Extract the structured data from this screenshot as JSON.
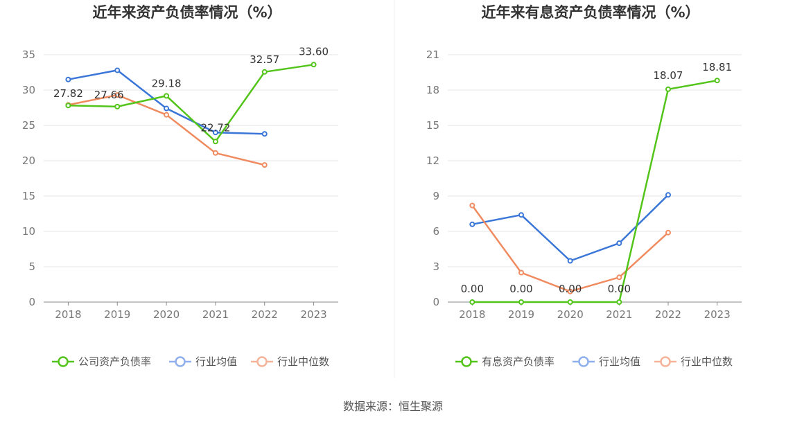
{
  "source": "数据来源：恒生聚源",
  "chart_data": [
    {
      "type": "line",
      "title": "近年来资产负债率情况（%）",
      "x": [
        "2018",
        "2019",
        "2020",
        "2021",
        "2022",
        "2023"
      ],
      "ylim": [
        0,
        35
      ],
      "yticks": [
        0,
        5,
        10,
        15,
        20,
        25,
        30,
        35
      ],
      "grid": true,
      "legend_position": "bottom",
      "series": [
        {
          "name": "公司资产负债率",
          "color": "#52c41a",
          "values": [
            27.82,
            27.66,
            29.18,
            22.72,
            32.57,
            33.6
          ],
          "labels": [
            "27.82",
            "27.66",
            "29.18",
            "22.72",
            "32.57",
            "33.60"
          ]
        },
        {
          "name": "行业均值",
          "color": "#3a76d8",
          "values": [
            31.5,
            32.8,
            27.4,
            24.0,
            23.8,
            null
          ]
        },
        {
          "name": "行业中位数",
          "color": "#f08b60",
          "values": [
            27.9,
            29.3,
            26.5,
            21.1,
            19.4,
            null
          ]
        }
      ]
    },
    {
      "type": "line",
      "title": "近年来有息资产负债率情况（%）",
      "x": [
        "2018",
        "2019",
        "2020",
        "2021",
        "2022",
        "2023"
      ],
      "ylim": [
        0,
        21
      ],
      "yticks": [
        0,
        3,
        6,
        9,
        12,
        15,
        18,
        21
      ],
      "grid": true,
      "legend_position": "bottom",
      "series": [
        {
          "name": "有息资产负债率",
          "color": "#52c41a",
          "values": [
            0.0,
            0.0,
            0.0,
            0.0,
            18.07,
            18.81
          ],
          "labels": [
            "0.00",
            "0.00",
            "0.00",
            "0.00",
            "18.07",
            "18.81"
          ]
        },
        {
          "name": "行业均值",
          "color": "#3a76d8",
          "values": [
            6.6,
            7.4,
            3.5,
            5.0,
            9.1,
            null
          ]
        },
        {
          "name": "行业中位数",
          "color": "#f08b60",
          "values": [
            8.2,
            2.5,
            0.9,
            2.1,
            5.9,
            null
          ]
        }
      ]
    }
  ]
}
